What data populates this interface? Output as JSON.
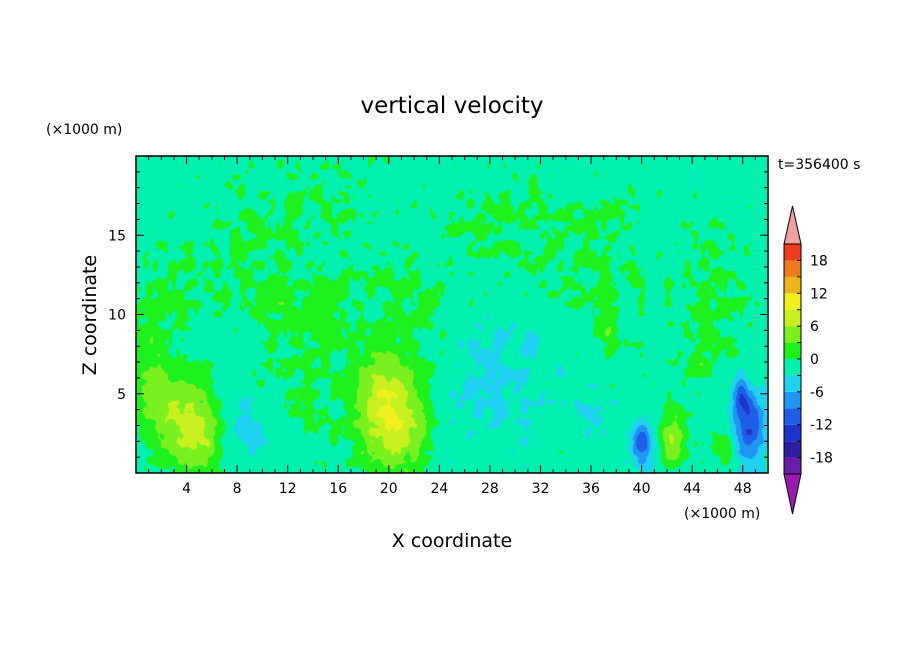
{
  "chart_data": {
    "type": "heatmap",
    "title": "vertical velocity",
    "xlabel": "X coordinate",
    "ylabel": "Z coordinate",
    "x_unit_label": "(×1000 m)",
    "y_unit_label": "(×1000 m)",
    "time_label": "t=356400 s",
    "xlim": [
      0,
      50
    ],
    "ylim": [
      0,
      20
    ],
    "x_ticks": [
      4,
      8,
      12,
      16,
      20,
      24,
      28,
      32,
      36,
      40,
      44,
      48
    ],
    "y_ticks": [
      5,
      10,
      15
    ],
    "background_value": -1.5,
    "features": [
      {
        "x": 3.2,
        "z": 3.8,
        "sx": 1.8,
        "sz": 2.0,
        "amp": 7.5
      },
      {
        "x": 5.2,
        "z": 2.0,
        "sx": 1.2,
        "sz": 1.6,
        "amp": 5.5
      },
      {
        "x": 1.0,
        "z": 7.0,
        "sx": 0.8,
        "sz": 2.5,
        "amp": 3.5
      },
      {
        "x": 20.5,
        "z": 3.0,
        "sx": 2.0,
        "sz": 2.2,
        "amp": 9.5
      },
      {
        "x": 19.5,
        "z": 5.5,
        "sx": 1.5,
        "sz": 1.6,
        "amp": 4.5
      },
      {
        "x": 42.5,
        "z": 2.2,
        "sx": 0.7,
        "sz": 1.3,
        "amp": 7.0
      },
      {
        "x": 46.8,
        "z": 1.6,
        "sx": 0.5,
        "sz": 0.9,
        "amp": 4.5
      },
      {
        "x": 40.0,
        "z": 1.8,
        "sx": 0.6,
        "sz": 0.9,
        "amp": -9.5
      },
      {
        "x": 48.5,
        "z": 3.0,
        "sx": 0.9,
        "sz": 1.6,
        "amp": -11.0
      },
      {
        "x": 47.8,
        "z": 4.8,
        "sx": 0.5,
        "sz": 0.8,
        "amp": -6.0
      },
      {
        "x": 8.5,
        "z": 3.0,
        "sx": 1.2,
        "sz": 1.5,
        "amp": -3.0
      },
      {
        "x": 26.0,
        "z": 4.5,
        "sx": 3.5,
        "sz": 2.5,
        "amp": -1.5
      },
      {
        "x": 36.0,
        "z": 4.0,
        "sx": 1.2,
        "sz": 1.0,
        "amp": -2.5
      },
      {
        "x": 14.0,
        "z": 9.0,
        "sx": 3.0,
        "sz": 4.0,
        "amp": 2.2
      },
      {
        "x": 22.0,
        "z": 10.0,
        "sx": 2.5,
        "sz": 3.0,
        "amp": 1.8
      },
      {
        "x": 8.0,
        "z": 14.0,
        "sx": 2.5,
        "sz": 3.0,
        "amp": 1.8
      },
      {
        "x": 36.0,
        "z": 13.0,
        "sx": 3.0,
        "sz": 4.0,
        "amp": 1.8
      },
      {
        "x": 46.0,
        "z": 11.0,
        "sx": 2.5,
        "sz": 3.5,
        "amp": 1.8
      },
      {
        "x": 3.0,
        "z": 12.0,
        "sx": 1.5,
        "sz": 2.5,
        "amp": 1.8
      },
      {
        "x": 29.0,
        "z": 16.0,
        "sx": 3.0,
        "sz": 2.5,
        "amp": 1.6
      },
      {
        "x": 15.0,
        "z": 17.5,
        "sx": 2.5,
        "sz": 1.5,
        "amp": 1.6
      },
      {
        "x": 37.5,
        "z": 9.0,
        "sx": 0.4,
        "sz": 0.8,
        "amp": 4.0
      },
      {
        "x": 44.5,
        "z": 7.0,
        "sx": 0.4,
        "sz": 0.8,
        "amp": 3.0
      },
      {
        "x": 11.5,
        "z": 11.0,
        "sx": 0.4,
        "sz": 0.6,
        "amp": 3.0
      },
      {
        "x": 30.0,
        "z": 7.0,
        "sx": 3.0,
        "sz": 2.0,
        "amp": -1.5
      }
    ],
    "colorbar": {
      "levels": [
        -21,
        -18,
        -15,
        -12,
        -9,
        -6,
        -3,
        0,
        3,
        6,
        9,
        12,
        15,
        18,
        21
      ],
      "tick_labels": [
        {
          "value": -18,
          "label": "-18"
        },
        {
          "value": -12,
          "label": "-12"
        },
        {
          "value": -6,
          "label": "-6"
        },
        {
          "value": 0,
          "label": "0"
        },
        {
          "value": 6,
          "label": "6"
        },
        {
          "value": 12,
          "label": "12"
        },
        {
          "value": 18,
          "label": "18"
        }
      ],
      "colors": [
        "#6a1fa8",
        "#2f1fa0",
        "#1f34c8",
        "#1f5ee8",
        "#1f96f0",
        "#1fd0f0",
        "#00f0b0",
        "#1ef01e",
        "#7af01e",
        "#c8f01e",
        "#f0f01e",
        "#f0b41e",
        "#f07a1e",
        "#f03c1e"
      ],
      "under_color": "#9a19b0",
      "over_color": "#f0a0a0"
    }
  }
}
